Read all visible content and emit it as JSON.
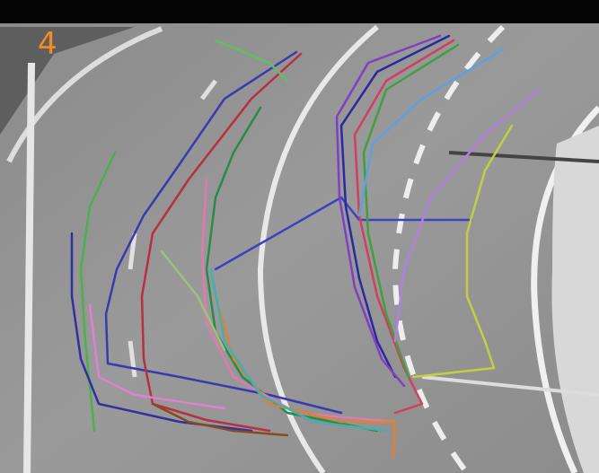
{
  "frame": {
    "label": "4"
  }
}
